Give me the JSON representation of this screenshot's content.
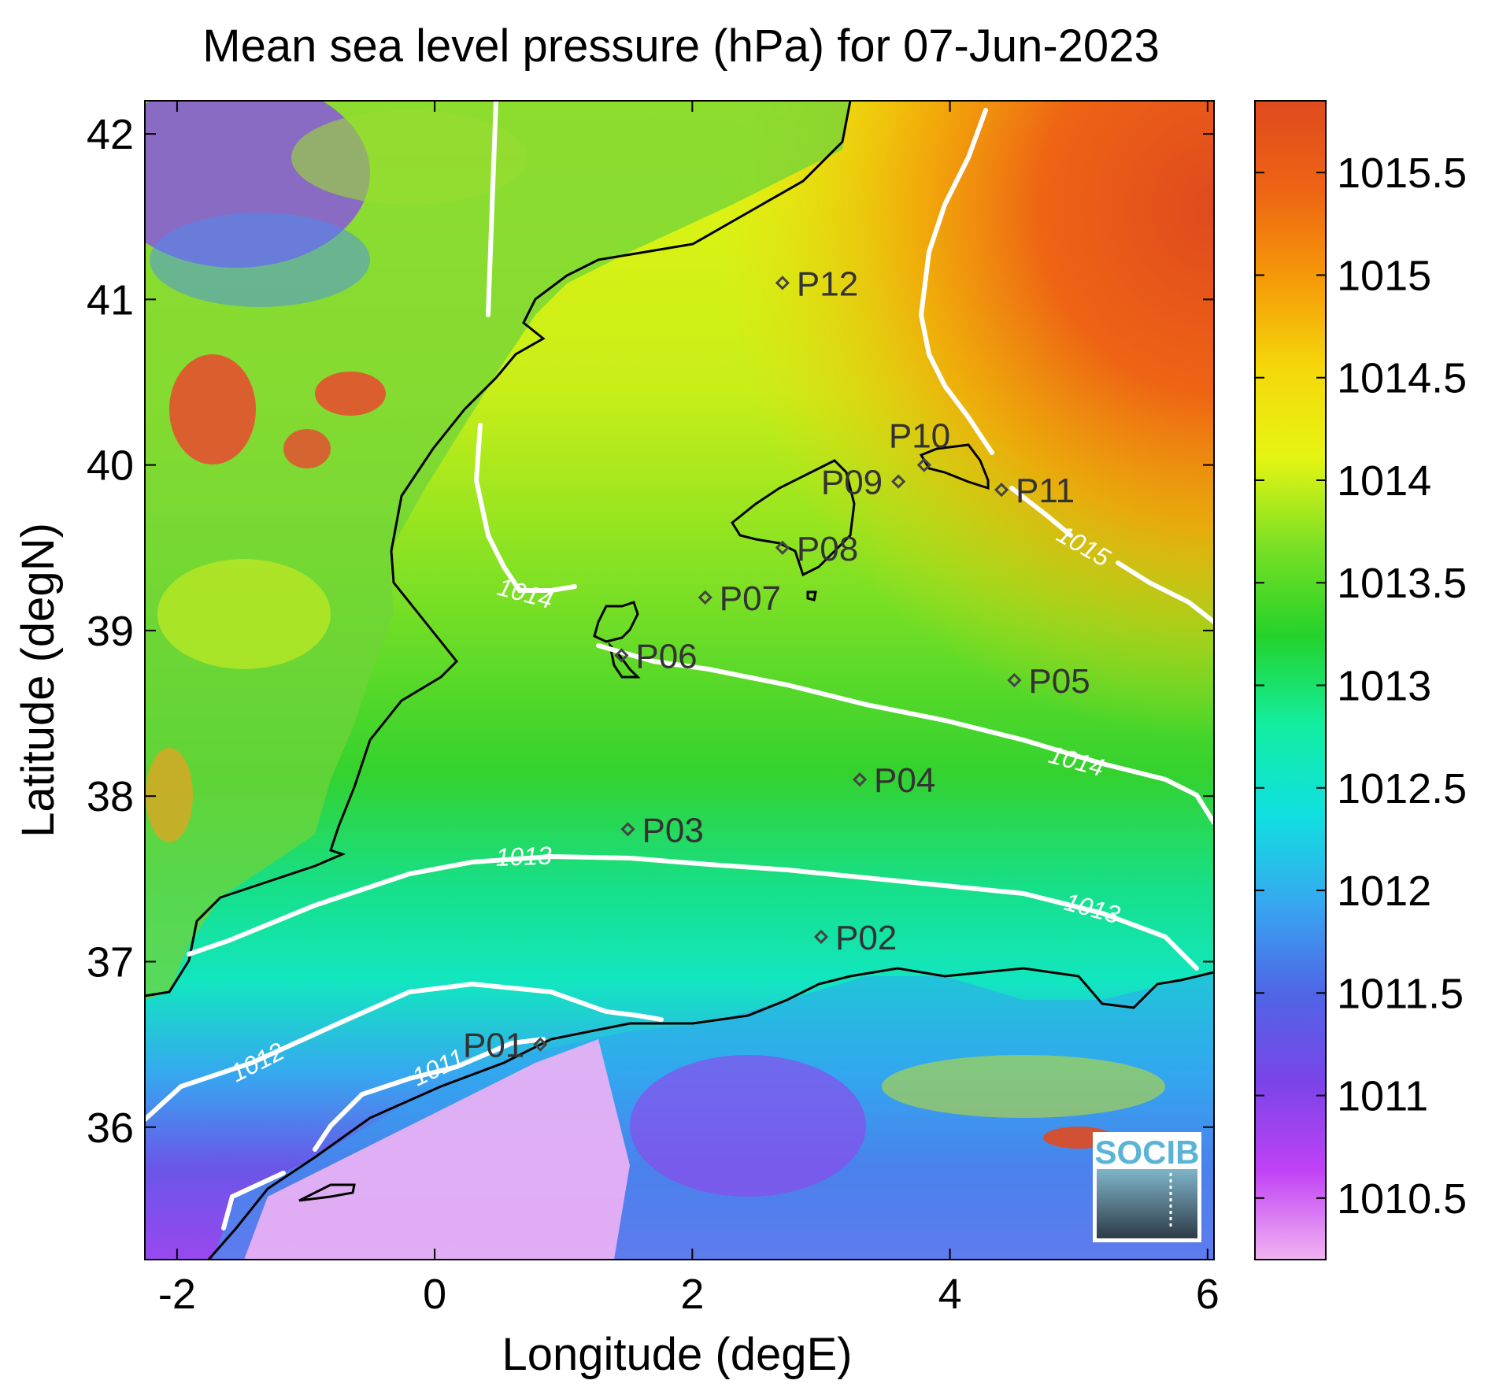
{
  "title": "Mean sea level pressure (hPa) for 07-Jun-2023",
  "x_axis": {
    "label": "Longitude (degE)",
    "ticks": [
      "-2",
      "0",
      "2",
      "4",
      "6"
    ],
    "range": [
      -2.25,
      6.05
    ]
  },
  "y_axis": {
    "label": "Latitude (degN)",
    "ticks": [
      "36",
      "37",
      "38",
      "39",
      "40",
      "41",
      "42"
    ],
    "range": [
      35.2,
      42.2
    ]
  },
  "colorbar": {
    "range": [
      1010.2,
      1015.85
    ],
    "ticks": [
      "1010.5",
      "1011",
      "1011.5",
      "1012",
      "1012.5",
      "1013",
      "1013.5",
      "1014",
      "1014.5",
      "1015",
      "1015.5"
    ],
    "colors": [
      "#f2b3f2",
      "#c042f5",
      "#7a44e8",
      "#4f66e6",
      "#36a8f0",
      "#10e0e0",
      "#12eea0",
      "#24d22a",
      "#7ae024",
      "#e6f512",
      "#f5d80a",
      "#f59a08",
      "#ee6414",
      "#e04a1e"
    ]
  },
  "contour_labels": [
    "1011",
    "1012",
    "1013",
    "1013",
    "1014",
    "1014",
    "1015"
  ],
  "stations": [
    {
      "name": "P01",
      "lon": 0.82,
      "lat": 36.5
    },
    {
      "name": "P02",
      "lon": 3.0,
      "lat": 37.15
    },
    {
      "name": "P03",
      "lon": 1.5,
      "lat": 37.8
    },
    {
      "name": "P04",
      "lon": 3.3,
      "lat": 38.1
    },
    {
      "name": "P05",
      "lon": 4.5,
      "lat": 38.7
    },
    {
      "name": "P06",
      "lon": 1.45,
      "lat": 38.85
    },
    {
      "name": "P07",
      "lon": 2.1,
      "lat": 39.2
    },
    {
      "name": "P08",
      "lon": 2.7,
      "lat": 39.5
    },
    {
      "name": "P09",
      "lon": 3.6,
      "lat": 39.9
    },
    {
      "name": "P10",
      "lon": 3.8,
      "lat": 40.0
    },
    {
      "name": "P11",
      "lon": 4.4,
      "lat": 39.85
    },
    {
      "name": "P12",
      "lon": 2.7,
      "lat": 41.1
    }
  ],
  "logo": {
    "text": "SOCIB",
    "color": "#5ab4d6"
  }
}
